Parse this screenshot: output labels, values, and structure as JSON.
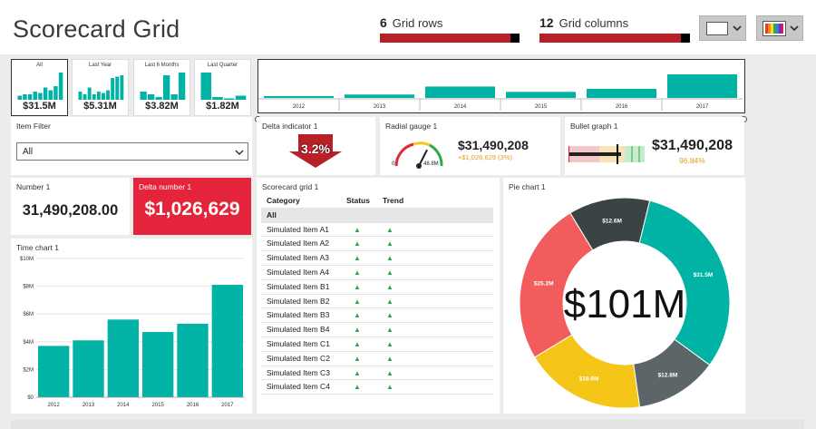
{
  "header": {
    "title": "Scorecard Grid",
    "rows_num": "6",
    "rows_label": "Grid rows",
    "rows_fill": 0.9,
    "cols_num": "12",
    "cols_label": "Grid columns",
    "cols_fill": 0.92
  },
  "mini_tiles": [
    {
      "label": "All",
      "value": "$31.5M",
      "bars": [
        0.15,
        0.2,
        0.2,
        0.3,
        0.25,
        0.45,
        0.35,
        0.5,
        1.0
      ]
    },
    {
      "label": "Last Year",
      "value": "$5.31M",
      "bars": [
        0.3,
        0.2,
        0.45,
        0.2,
        0.3,
        0.25,
        0.35,
        0.8,
        0.85,
        0.9
      ]
    },
    {
      "label": "Last 6 Months",
      "value": "$3.82M",
      "bars": [
        0.3,
        0.2,
        0.1,
        0.9,
        0.2,
        1.0
      ]
    },
    {
      "label": "Last Quarter",
      "value": "$1.82M",
      "bars": [
        1.0,
        0.1,
        0.05,
        0.15
      ]
    }
  ],
  "timeline": {
    "years": [
      "2012",
      "2013",
      "2014",
      "2015",
      "2016",
      "2017"
    ],
    "values": [
      0.5,
      0.9,
      3.0,
      1.6,
      2.4,
      6.2
    ]
  },
  "item_filter": {
    "title": "Item Filter",
    "value": "All"
  },
  "delta_indicator": {
    "title": "Delta indicator 1",
    "value": "3.2%"
  },
  "radial_gauge": {
    "title": "Radial gauge 1",
    "value": "$31,490,208",
    "sub": "+$1,026,629 (3%)",
    "min": "0",
    "max": "48.8M",
    "fraction": 0.65
  },
  "bullet_graph": {
    "title": "Bullet graph 1",
    "value": "$31,490,208",
    "sub": "96.84%",
    "fraction": 0.68
  },
  "number": {
    "title": "Number 1",
    "value": "31,490,208.00"
  },
  "delta_number": {
    "title": "Delta number 1",
    "value": "$1,026,629"
  },
  "scorecard": {
    "title": "Scorecard grid 1",
    "headers": [
      "Category",
      "Status",
      "Trend"
    ],
    "rows": [
      "All",
      "Simulated Item A1",
      "Simulated Item A2",
      "Simulated Item A3",
      "Simulated Item A4",
      "Simulated Item B1",
      "Simulated Item B2",
      "Simulated Item B3",
      "Simulated Item B4",
      "Simulated Item C1",
      "Simulated Item C2",
      "Simulated Item C3",
      "Simulated Item C4"
    ],
    "arrow": "▲"
  },
  "colors": {
    "teal": "#00b3a4",
    "red": "#e3243b",
    "dark_red": "#b82027",
    "yellow": "#f5c518",
    "coral": "#f25c5c",
    "dark_slate": "#3b4344",
    "slate": "#5c6668"
  },
  "chart_data": [
    {
      "type": "bar",
      "title": "Time chart 1",
      "categories": [
        "2012",
        "2013",
        "2014",
        "2015",
        "2016",
        "2017"
      ],
      "values": [
        3.7,
        4.1,
        5.6,
        4.7,
        5.3,
        8.1
      ],
      "ylim": [
        0,
        10
      ],
      "yticks": [
        "$0",
        "$2M",
        "$4M",
        "$6M",
        "$8M",
        "$10M"
      ],
      "ytick_values": [
        0,
        2,
        4,
        6,
        8,
        10
      ],
      "grid": true
    },
    {
      "type": "pie",
      "title": "Pie chart 1",
      "center_label": "$101M",
      "slices": [
        {
          "label": "$31.5M",
          "value": 31.5,
          "color": "#00b3a4"
        },
        {
          "label": "$12.8M",
          "value": 12.8,
          "color": "#5c6668"
        },
        {
          "label": "$18.8M",
          "value": 18.8,
          "color": "#f5c518"
        },
        {
          "label": "$25.2M",
          "value": 25.2,
          "color": "#f25c5c"
        },
        {
          "label": "$12.6M",
          "value": 12.6,
          "color": "#3b4344"
        }
      ]
    }
  ]
}
